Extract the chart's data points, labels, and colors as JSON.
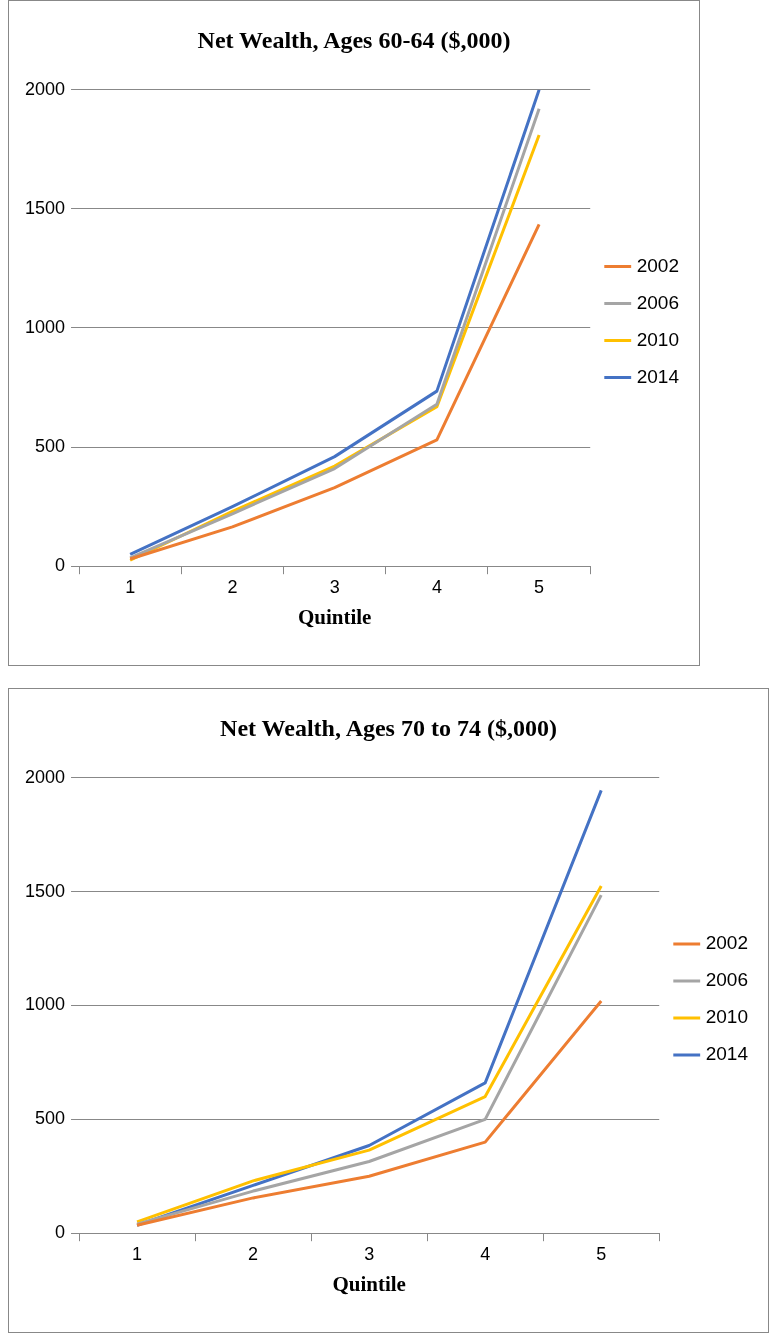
{
  "chart_data": [
    {
      "type": "line",
      "title": "Net Wealth, Ages 60-64 ($,000)",
      "xlabel": "Quintile",
      "categories": [
        "1",
        "2",
        "3",
        "4",
        "5"
      ],
      "ylim": [
        0,
        2000
      ],
      "yticks": [
        0,
        500,
        1000,
        1500,
        2000
      ],
      "grid": "y",
      "legend": "right",
      "marker": "none",
      "line_style": "solid",
      "series": [
        {
          "name": "2002",
          "color": "#ed7d31",
          "values": [
            30,
            165,
            330,
            530,
            1435
          ]
        },
        {
          "name": "2006",
          "color": "#a5a5a5",
          "values": [
            35,
            220,
            410,
            680,
            1920
          ]
        },
        {
          "name": "2010",
          "color": "#ffc000",
          "values": [
            25,
            230,
            420,
            670,
            1810
          ]
        },
        {
          "name": "2014",
          "color": "#4472c4",
          "values": [
            50,
            250,
            460,
            735,
            2000
          ]
        }
      ]
    },
    {
      "type": "line",
      "title": "Net Wealth, Ages 70 to 74 ($,000)",
      "xlabel": "Quintile",
      "categories": [
        "1",
        "2",
        "3",
        "4",
        "5"
      ],
      "ylim": [
        0,
        2000
      ],
      "yticks": [
        0,
        500,
        1000,
        1500,
        2000
      ],
      "grid": "y",
      "legend": "right",
      "marker": "none",
      "line_style": "solid",
      "series": [
        {
          "name": "2002",
          "color": "#ed7d31",
          "values": [
            35,
            155,
            250,
            400,
            1020
          ]
        },
        {
          "name": "2006",
          "color": "#a5a5a5",
          "values": [
            40,
            185,
            315,
            500,
            1485
          ]
        },
        {
          "name": "2010",
          "color": "#ffc000",
          "values": [
            50,
            230,
            365,
            600,
            1525
          ]
        },
        {
          "name": "2014",
          "color": "#4472c4",
          "values": [
            35,
            210,
            385,
            660,
            1945
          ]
        }
      ]
    }
  ]
}
